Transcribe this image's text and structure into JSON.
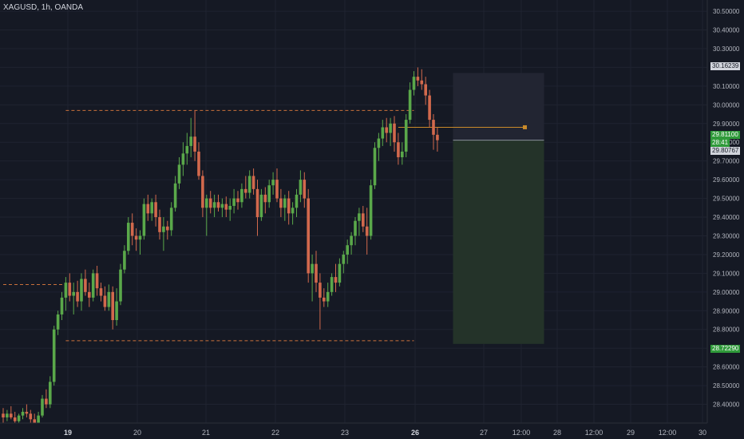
{
  "header": {
    "symbol_label": "XAGUSD, 1h, OANDA"
  },
  "colors": {
    "background": "#151924",
    "grid": "#1f2330",
    "up": "#5aa84a",
    "down": "#d2694d",
    "level_line": "#c9703a",
    "stop_zone": "#222532",
    "target_zone": "#243329",
    "axis_text": "#b2b5be",
    "current_price_bg": "#2f9a3a",
    "tag_bg": "#d1d4dc"
  },
  "price_tags": {
    "top_label": "30.16239",
    "current_price": "29.81100",
    "countdown": "28:41",
    "second_label": "29.80767",
    "bottom_label": "28.72290"
  },
  "chart_data": {
    "type": "candlestick",
    "title": "XAGUSD, 1h, OANDA",
    "y_ticks": [
      30.5,
      30.4,
      30.3,
      30.2,
      30.1,
      30.0,
      29.9,
      29.8,
      29.7,
      29.6,
      29.5,
      29.4,
      29.3,
      29.2,
      29.1,
      29.0,
      28.9,
      28.8,
      28.7,
      28.6,
      28.5,
      28.4
    ],
    "y_tick_labels": [
      "30.50000",
      "30.40000",
      "30.30000",
      "30.20000",
      "30.10000",
      "30.00000",
      "29.90000",
      "29.80000",
      "29.70000",
      "29.60000",
      "29.50000",
      "29.40000",
      "29.30000",
      "29.20000",
      "29.10000",
      "29.00000",
      "28.90000",
      "28.80000",
      "28.70000",
      "28.60000",
      "28.50000",
      "28.40000"
    ],
    "x_tick_labels": [
      "19",
      "20",
      "21",
      "22",
      "23",
      "26",
      "27",
      "12:00",
      "28",
      "12:00",
      "29",
      "12:00",
      "30"
    ],
    "x_tick_bold": [
      "19",
      "26"
    ],
    "ylim": [
      28.3,
      30.56
    ],
    "horizontal_levels": [
      {
        "price": 29.97,
        "from_candle": 16,
        "to_candle": 105
      },
      {
        "price": 28.74,
        "from_candle": 16,
        "to_candle": 105
      },
      {
        "price": 29.04,
        "from_candle": 0,
        "to_candle": 16
      }
    ],
    "current_price": 29.811,
    "position": {
      "entry": 29.811,
      "stop": 30.17,
      "target": 28.7229
    },
    "candles": [
      [
        28.35,
        28.38,
        28.3,
        28.33
      ],
      [
        28.33,
        28.37,
        28.31,
        28.35
      ],
      [
        28.35,
        28.39,
        28.32,
        28.33
      ],
      [
        28.33,
        28.36,
        28.29,
        28.31
      ],
      [
        28.31,
        28.35,
        28.3,
        28.34
      ],
      [
        28.34,
        28.38,
        28.32,
        28.36
      ],
      [
        28.36,
        28.4,
        28.33,
        28.35
      ],
      [
        28.35,
        28.37,
        28.3,
        28.32
      ],
      [
        28.32,
        28.35,
        28.28,
        28.3
      ],
      [
        28.3,
        28.36,
        28.28,
        28.34
      ],
      [
        28.34,
        28.45,
        28.33,
        28.43
      ],
      [
        28.43,
        28.48,
        28.38,
        28.4
      ],
      [
        28.4,
        28.55,
        28.38,
        28.52
      ],
      [
        28.52,
        28.82,
        28.5,
        28.8
      ],
      [
        28.8,
        28.9,
        28.77,
        28.88
      ],
      [
        28.88,
        29.0,
        28.85,
        28.97
      ],
      [
        28.97,
        29.08,
        28.9,
        29.05
      ],
      [
        29.05,
        29.1,
        28.95,
        28.98
      ],
      [
        28.98,
        29.05,
        28.88,
        29.0
      ],
      [
        29.0,
        29.06,
        28.92,
        28.95
      ],
      [
        28.95,
        29.1,
        28.9,
        29.07
      ],
      [
        29.07,
        29.12,
        28.98,
        29.0
      ],
      [
        29.0,
        29.05,
        28.92,
        28.97
      ],
      [
        28.97,
        29.12,
        28.95,
        29.1
      ],
      [
        29.1,
        29.14,
        28.98,
        29.02
      ],
      [
        29.02,
        29.05,
        28.95,
        28.98
      ],
      [
        28.98,
        29.03,
        28.9,
        28.92
      ],
      [
        28.92,
        29.04,
        28.9,
        29.0
      ],
      [
        29.0,
        29.03,
        28.8,
        28.85
      ],
      [
        28.85,
        29.02,
        28.82,
        28.95
      ],
      [
        28.95,
        29.15,
        28.93,
        29.12
      ],
      [
        29.12,
        29.25,
        29.1,
        29.22
      ],
      [
        29.22,
        29.4,
        29.2,
        29.37
      ],
      [
        29.37,
        29.42,
        29.25,
        29.3
      ],
      [
        29.3,
        29.34,
        29.22,
        29.28
      ],
      [
        29.28,
        29.33,
        29.2,
        29.3
      ],
      [
        29.3,
        29.5,
        29.28,
        29.47
      ],
      [
        29.47,
        29.52,
        29.38,
        29.42
      ],
      [
        29.42,
        29.5,
        29.38,
        29.48
      ],
      [
        29.48,
        29.52,
        29.35,
        29.4
      ],
      [
        29.4,
        29.44,
        29.28,
        29.32
      ],
      [
        29.32,
        29.4,
        29.22,
        29.35
      ],
      [
        29.35,
        29.38,
        29.28,
        29.33
      ],
      [
        29.33,
        29.48,
        29.3,
        29.45
      ],
      [
        29.45,
        29.62,
        29.43,
        29.58
      ],
      [
        29.58,
        29.72,
        29.55,
        29.68
      ],
      [
        29.68,
        29.8,
        29.62,
        29.74
      ],
      [
        29.74,
        29.85,
        29.68,
        29.78
      ],
      [
        29.78,
        29.93,
        29.72,
        29.83
      ],
      [
        29.83,
        29.97,
        29.7,
        29.75
      ],
      [
        29.75,
        29.8,
        29.6,
        29.62
      ],
      [
        29.62,
        29.65,
        29.4,
        29.45
      ],
      [
        29.45,
        29.52,
        29.3,
        29.5
      ],
      [
        29.5,
        29.54,
        29.42,
        29.45
      ],
      [
        29.45,
        29.52,
        29.4,
        29.48
      ],
      [
        29.48,
        29.52,
        29.43,
        29.45
      ],
      [
        29.45,
        29.5,
        29.4,
        29.47
      ],
      [
        29.47,
        29.51,
        29.4,
        29.44
      ],
      [
        29.44,
        29.5,
        29.38,
        29.46
      ],
      [
        29.46,
        29.55,
        29.42,
        29.5
      ],
      [
        29.5,
        29.54,
        29.44,
        29.48
      ],
      [
        29.48,
        29.58,
        29.45,
        29.55
      ],
      [
        29.55,
        29.62,
        29.5,
        29.53
      ],
      [
        29.53,
        29.65,
        29.5,
        29.62
      ],
      [
        29.62,
        29.66,
        29.52,
        29.55
      ],
      [
        29.55,
        29.6,
        29.3,
        29.4
      ],
      [
        29.4,
        29.55,
        29.38,
        29.52
      ],
      [
        29.52,
        29.56,
        29.42,
        29.48
      ],
      [
        29.48,
        29.6,
        29.45,
        29.57
      ],
      [
        29.57,
        29.64,
        29.52,
        29.6
      ],
      [
        29.6,
        29.66,
        29.48,
        29.5
      ],
      [
        29.5,
        29.55,
        29.4,
        29.45
      ],
      [
        29.45,
        29.52,
        29.38,
        29.5
      ],
      [
        29.5,
        29.54,
        29.36,
        29.42
      ],
      [
        29.42,
        29.48,
        29.36,
        29.45
      ],
      [
        29.45,
        29.55,
        29.4,
        29.52
      ],
      [
        29.52,
        29.65,
        29.48,
        29.6
      ],
      [
        29.6,
        29.64,
        29.45,
        29.5
      ],
      [
        29.5,
        29.55,
        29.05,
        29.1
      ],
      [
        29.1,
        29.2,
        28.95,
        29.15
      ],
      [
        29.15,
        29.22,
        29.0,
        29.05
      ],
      [
        29.05,
        29.1,
        28.8,
        28.97
      ],
      [
        28.97,
        29.02,
        28.92,
        28.95
      ],
      [
        28.95,
        29.05,
        28.92,
        29.0
      ],
      [
        29.0,
        29.1,
        28.98,
        29.08
      ],
      [
        29.08,
        29.15,
        29.0,
        29.05
      ],
      [
        29.05,
        29.18,
        29.03,
        29.15
      ],
      [
        29.15,
        29.22,
        29.1,
        29.2
      ],
      [
        29.2,
        29.28,
        29.15,
        29.25
      ],
      [
        29.25,
        29.32,
        29.2,
        29.3
      ],
      [
        29.3,
        29.4,
        29.25,
        29.38
      ],
      [
        29.38,
        29.45,
        29.3,
        29.42
      ],
      [
        29.42,
        29.46,
        29.32,
        29.35
      ],
      [
        29.35,
        29.45,
        29.2,
        29.3
      ],
      [
        29.3,
        29.6,
        29.28,
        29.57
      ],
      [
        29.57,
        29.8,
        29.55,
        29.77
      ],
      [
        29.77,
        29.85,
        29.7,
        29.82
      ],
      [
        29.82,
        29.92,
        29.78,
        29.88
      ],
      [
        29.88,
        29.93,
        29.8,
        29.85
      ],
      [
        29.85,
        29.93,
        29.78,
        29.9
      ],
      [
        29.9,
        29.94,
        29.75,
        29.8
      ],
      [
        29.8,
        29.85,
        29.68,
        29.72
      ],
      [
        29.72,
        29.8,
        29.68,
        29.75
      ],
      [
        29.75,
        29.95,
        29.72,
        29.92
      ],
      [
        29.92,
        30.12,
        29.9,
        30.08
      ],
      [
        30.08,
        30.18,
        30.05,
        30.15
      ],
      [
        30.15,
        30.2,
        30.1,
        30.13
      ],
      [
        30.13,
        30.19,
        30.08,
        30.11
      ],
      [
        30.11,
        30.15,
        30.0,
        30.05
      ],
      [
        30.05,
        30.08,
        29.88,
        29.92
      ],
      [
        29.92,
        29.95,
        29.76,
        29.84
      ],
      [
        29.84,
        29.88,
        29.75,
        29.811
      ]
    ]
  }
}
